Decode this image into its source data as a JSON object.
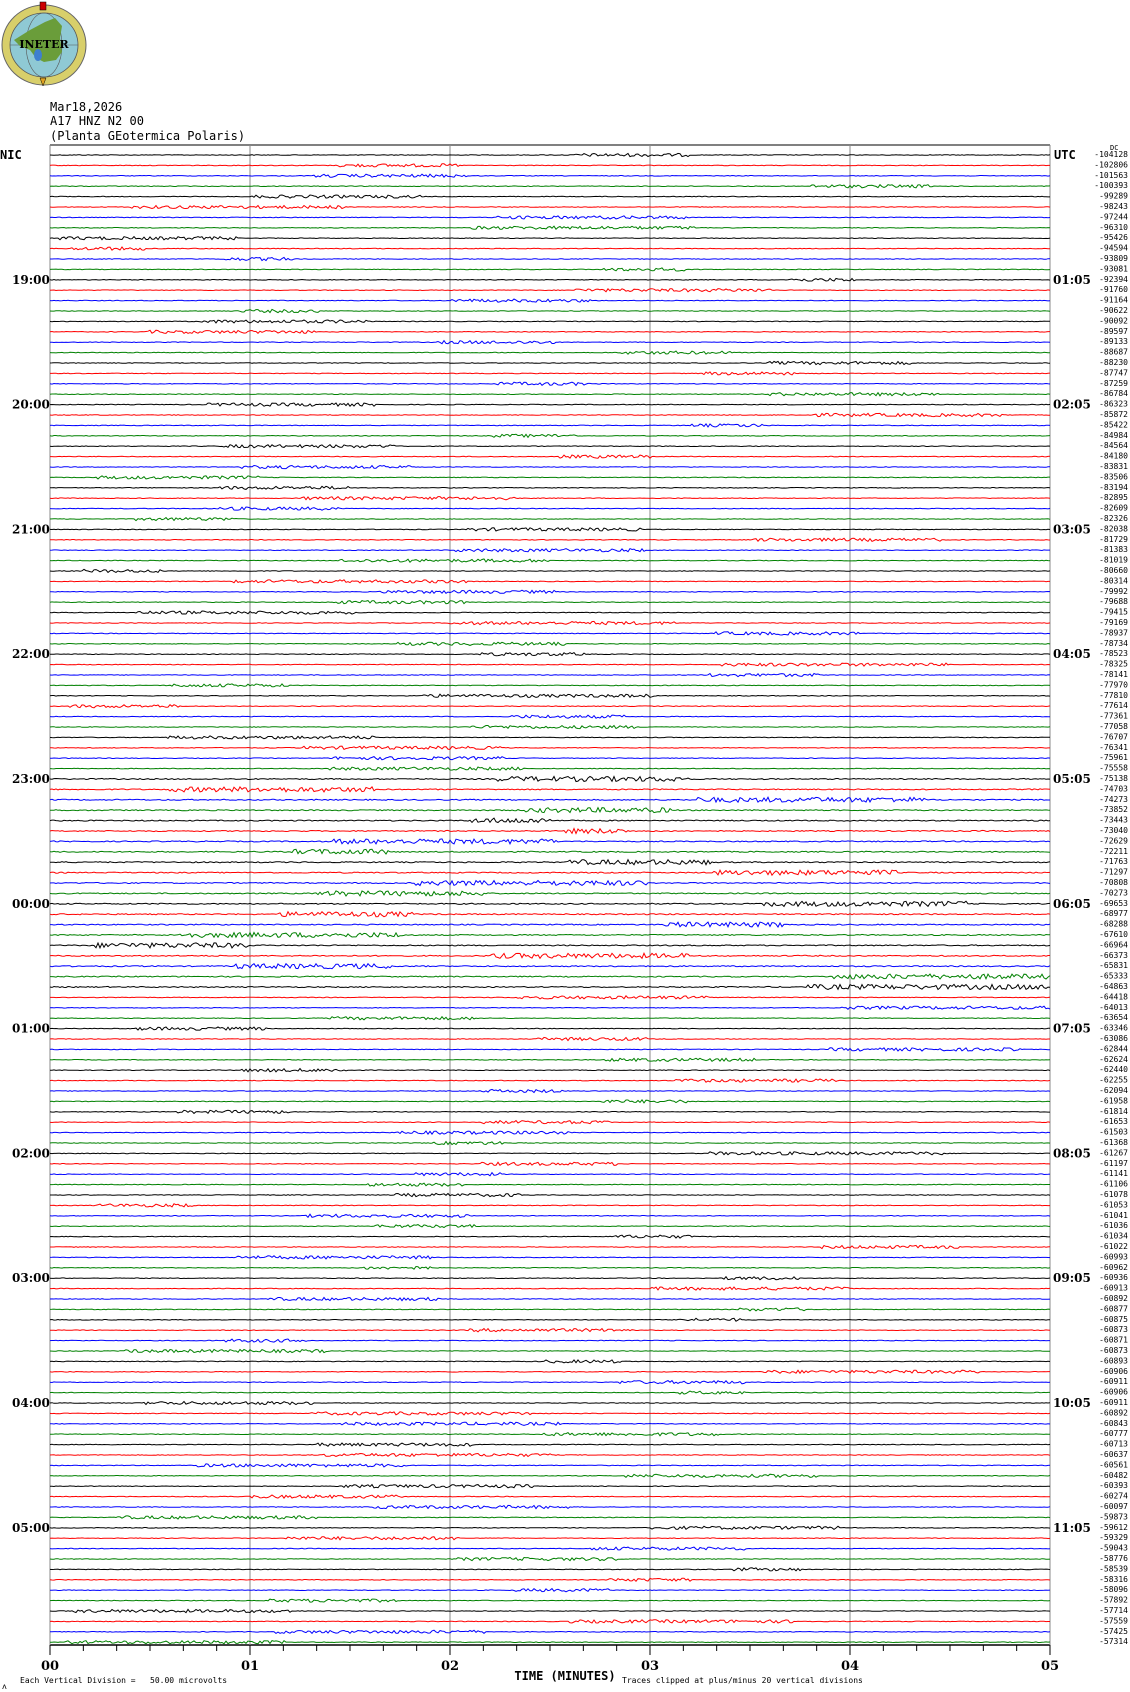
{
  "logo": {
    "text": "INETER",
    "colors": {
      "ring": "#d8cf6a",
      "globe": "#8fc9d4",
      "land": "#6a9d3a",
      "lake": "#3f7fd0"
    }
  },
  "header": {
    "date": "Mar18,2026",
    "channel": "A17 HNZ N2 00",
    "station": "(Planta GEotermica Polaris)"
  },
  "chart_data": {
    "type": "line",
    "title": "",
    "xlabel": "TIME (MINUTES)",
    "x_ticks": [
      "00",
      "01",
      "02",
      "03",
      "04",
      "05"
    ],
    "xlim": [
      0,
      5
    ],
    "grid": true,
    "trace_colors": [
      "#000000",
      "#ff0000",
      "#0000ff",
      "#008000"
    ],
    "left_timezone": "NIC",
    "right_timezone": "UTC",
    "dc_label": "DC",
    "left_hour_labels": [
      "19:00",
      "20:00",
      "21:00",
      "22:00",
      "23:00",
      "00:00",
      "01:00",
      "02:00",
      "03:00",
      "04:00",
      "05:00"
    ],
    "right_hour_labels": [
      "01:05",
      "02:05",
      "03:05",
      "04:05",
      "05:05",
      "06:05",
      "07:05",
      "08:05",
      "09:05",
      "10:05",
      "11:05"
    ],
    "trace_offsets": [
      "-104128",
      "-102806",
      "-101563",
      "-100393",
      "-99289",
      "-98243",
      "-97244",
      "-96310",
      "-95426",
      "-94594",
      "-93809",
      "-93081",
      "-92394",
      "-91760",
      "-91164",
      "-90622",
      "-90092",
      "-89597",
      "-89133",
      "-88687",
      "-88230",
      "-87747",
      "-87259",
      "-86784",
      "-86323",
      "-85872",
      "-85422",
      "-84984",
      "-84564",
      "-84180",
      "-83831",
      "-83506",
      "-83194",
      "-82895",
      "-82609",
      "-82326",
      "-82038",
      "-81729",
      "-81383",
      "-81019",
      "-80660",
      "-80314",
      "-79992",
      "-79688",
      "-79415",
      "-79169",
      "-78937",
      "-78734",
      "-78523",
      "-78325",
      "-78141",
      "-77970",
      "-77810",
      "-77614",
      "-77361",
      "-77058",
      "-76707",
      "-76341",
      "-75961",
      "-75558",
      "-75138",
      "-74703",
      "-74273",
      "-73852",
      "-73443",
      "-73040",
      "-72629",
      "-72211",
      "-71763",
      "-71297",
      "-70808",
      "-70273",
      "-69653",
      "-68977",
      "-68288",
      "-67610",
      "-66964",
      "-66373",
      "-65831",
      "-65333",
      "-64863",
      "-64418",
      "-64013",
      "-63654",
      "-63346",
      "-63086",
      "-62844",
      "-62624",
      "-62440",
      "-62255",
      "-62094",
      "-61958",
      "-61814",
      "-61653",
      "-61503",
      "-61368",
      "-61267",
      "-61197",
      "-61141",
      "-61106",
      "-61078",
      "-61053",
      "-61041",
      "-61036",
      "-61034",
      "-61022",
      "-60993",
      "-60962",
      "-60936",
      "-60913",
      "-60892",
      "-60877",
      "-60875",
      "-60873",
      "-60871",
      "-60873",
      "-60893",
      "-60906",
      "-60911",
      "-60906",
      "-60911",
      "-60892",
      "-60843",
      "-60777",
      "-60713",
      "-60637",
      "-60561",
      "-60482",
      "-60393",
      "-60274",
      "-60097",
      "-59873",
      "-59612",
      "-59329",
      "-59043",
      "-58776",
      "-58539",
      "-58316",
      "-58096",
      "-57892",
      "-57714",
      "-57559",
      "-57425",
      "-57314"
    ]
  },
  "footer": {
    "scale_note": "Each Vertical Division =   50.00 microvolts",
    "clip_note": "Traces clipped at plus/minus 20 vertical divisions"
  }
}
